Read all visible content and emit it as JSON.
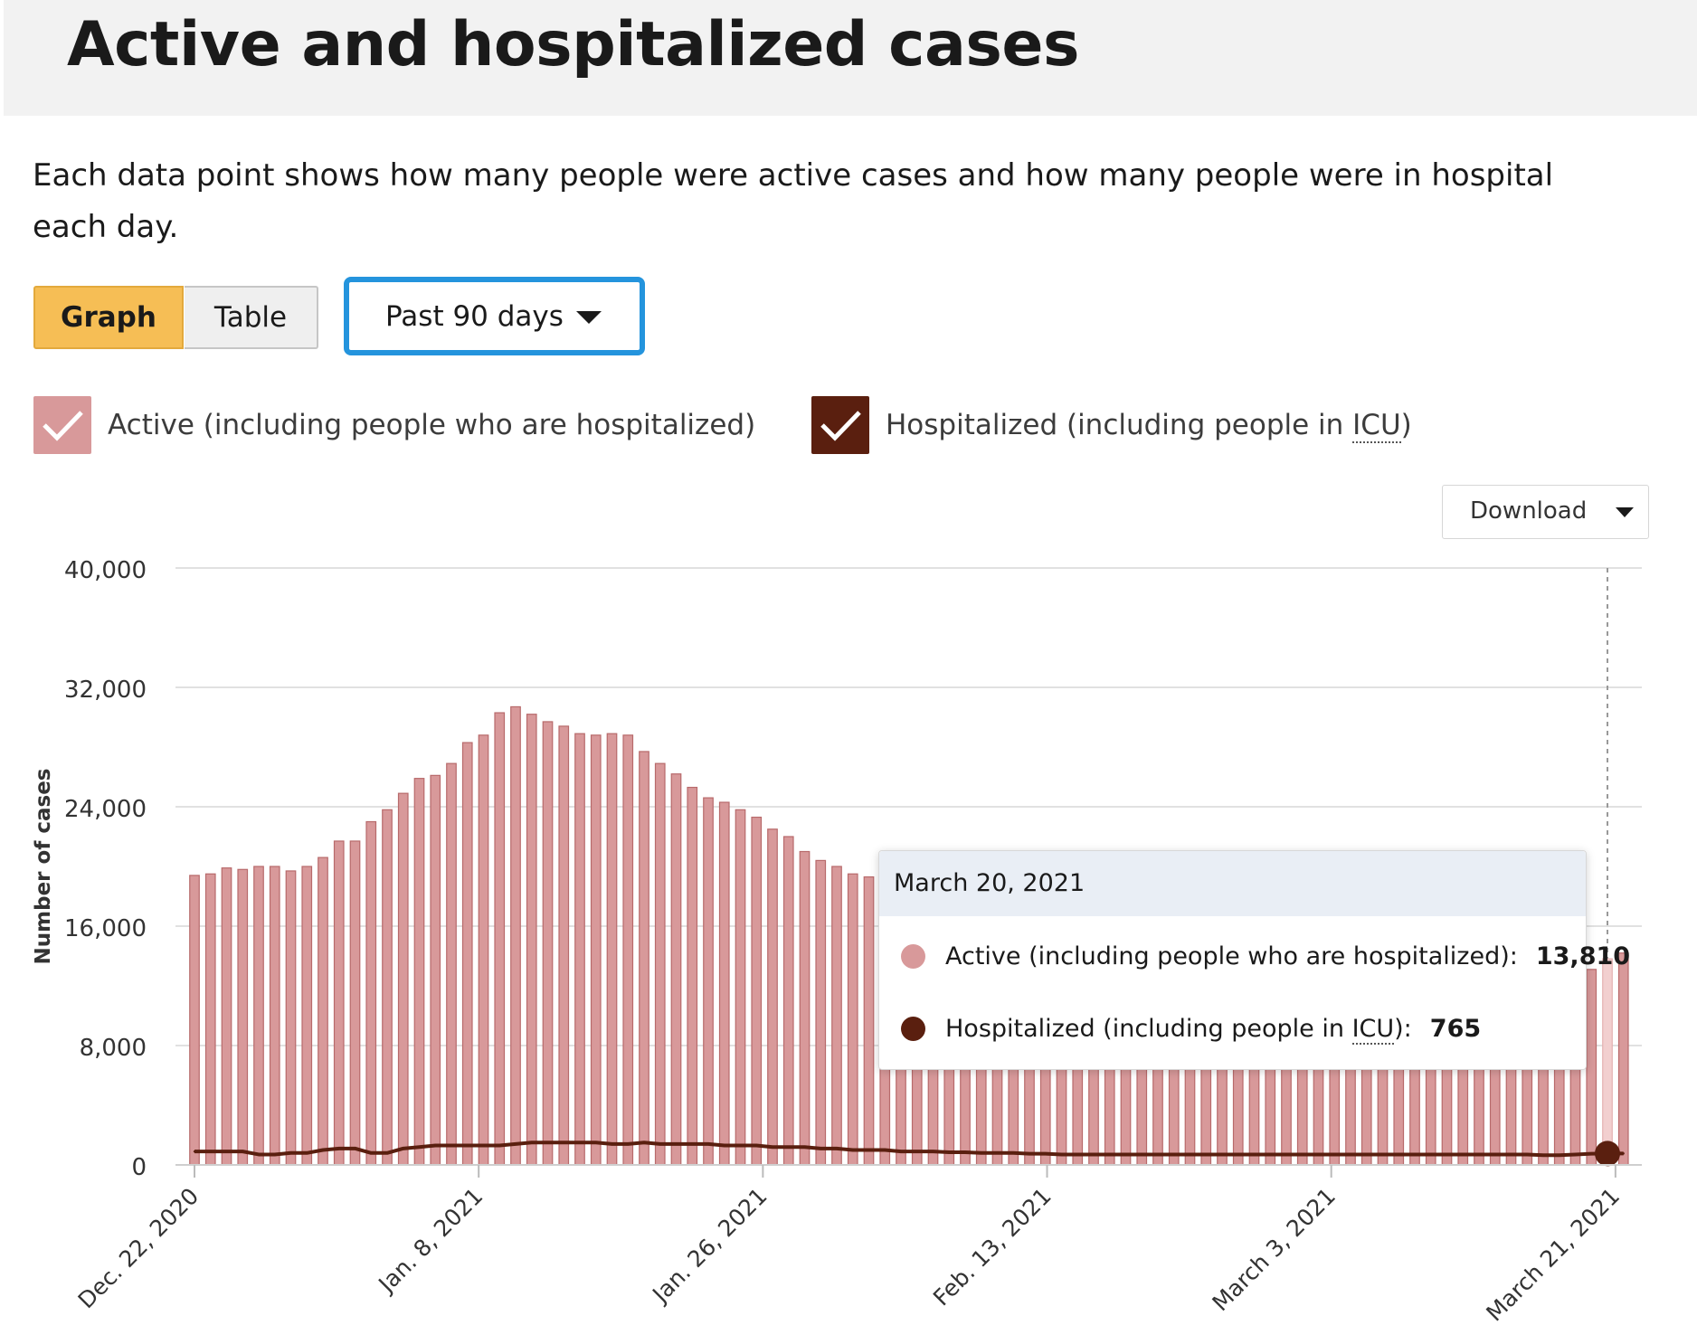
{
  "header": {
    "title": "Active and hospitalized cases"
  },
  "description": "Each data point shows how many people were active cases and how many people were in hospital each day.",
  "view_toggle": {
    "graph_label": "Graph",
    "table_label": "Table",
    "selected": "Graph"
  },
  "range_select": {
    "value": "Past 90 days"
  },
  "legend": {
    "active_label": "Active (including people who are hospitalized)",
    "hosp_label_pre": "Hospitalized (including people in ",
    "hosp_label_abbr": "ICU",
    "hosp_label_post": ")"
  },
  "download": {
    "label": "Download"
  },
  "tooltip": {
    "date": "March 20, 2021",
    "active_label": "Active (including people who are hospitalized):",
    "active_value": "13,810",
    "hosp_label_pre": "Hospitalized (including people in ",
    "hosp_label_abbr": "ICU",
    "hosp_label_post": "):",
    "hosp_value": "765"
  },
  "colors": {
    "active": "#d8999a",
    "active_stroke": "#b86a6b",
    "active_highlight": "#f2cfcf",
    "hospitalized": "#5a1f0f",
    "grid": "#e1e1e1",
    "accent_select": "#2494dd",
    "graph_button": "#f6be55"
  },
  "chart_data": {
    "type": "bar",
    "ylabel": "Number of cases",
    "ylim": [
      0,
      40000
    ],
    "yticks": [
      0,
      8000,
      16000,
      24000,
      32000,
      40000
    ],
    "ytick_labels": [
      "0",
      "8,000",
      "16,000",
      "24,000",
      "32,000",
      "40,000"
    ],
    "xtick_labels": [
      "Dec. 22, 2020",
      "Jan. 8, 2021",
      "Jan. 26, 2021",
      "Feb. 13, 2021",
      "March 3, 2021",
      "March 21, 2021"
    ],
    "grid": true,
    "highlighted_date": "March 20, 2021",
    "series": [
      {
        "name": "Active (including people who are hospitalized)",
        "kind": "bar",
        "values": [
          19400,
          19500,
          19900,
          19800,
          20000,
          20000,
          19700,
          20000,
          20600,
          21700,
          21700,
          23000,
          23800,
          24900,
          25900,
          26100,
          26900,
          28300,
          28800,
          30300,
          30700,
          30200,
          29700,
          29400,
          28900,
          28800,
          28900,
          28800,
          27700,
          26900,
          26200,
          25300,
          24600,
          24300,
          23800,
          23300,
          22500,
          22000,
          21000,
          20400,
          20000,
          19500,
          19300,
          17400,
          16600,
          15800,
          15300,
          14900,
          14700,
          14600,
          14400,
          14300,
          14100,
          13900,
          13800,
          13600,
          13500,
          13300,
          13100,
          13000,
          12900,
          12800,
          12700,
          12600,
          12500,
          12400,
          12300,
          12200,
          12100,
          12000,
          12000,
          12000,
          11900,
          11900,
          11800,
          11800,
          11800,
          11800,
          11900,
          11900,
          11900,
          11900,
          12000,
          12100,
          12200,
          12400,
          12700,
          13100,
          13810,
          14200
        ]
      },
      {
        "name": "Hospitalized (including people in ICU)",
        "kind": "line",
        "values": [
          900,
          900,
          900,
          900,
          700,
          700,
          800,
          800,
          1000,
          1100,
          1100,
          800,
          800,
          1100,
          1200,
          1300,
          1300,
          1300,
          1300,
          1300,
          1400,
          1500,
          1500,
          1500,
          1500,
          1500,
          1400,
          1400,
          1500,
          1400,
          1400,
          1400,
          1400,
          1300,
          1300,
          1300,
          1200,
          1200,
          1200,
          1100,
          1100,
          1000,
          1000,
          1000,
          900,
          900,
          900,
          850,
          850,
          800,
          800,
          800,
          750,
          750,
          700,
          700,
          700,
          700,
          700,
          700,
          700,
          700,
          700,
          700,
          700,
          700,
          700,
          700,
          700,
          700,
          700,
          700,
          700,
          700,
          700,
          700,
          700,
          700,
          700,
          700,
          700,
          700,
          700,
          700,
          650,
          650,
          700,
          750,
          765,
          765
        ]
      }
    ]
  }
}
